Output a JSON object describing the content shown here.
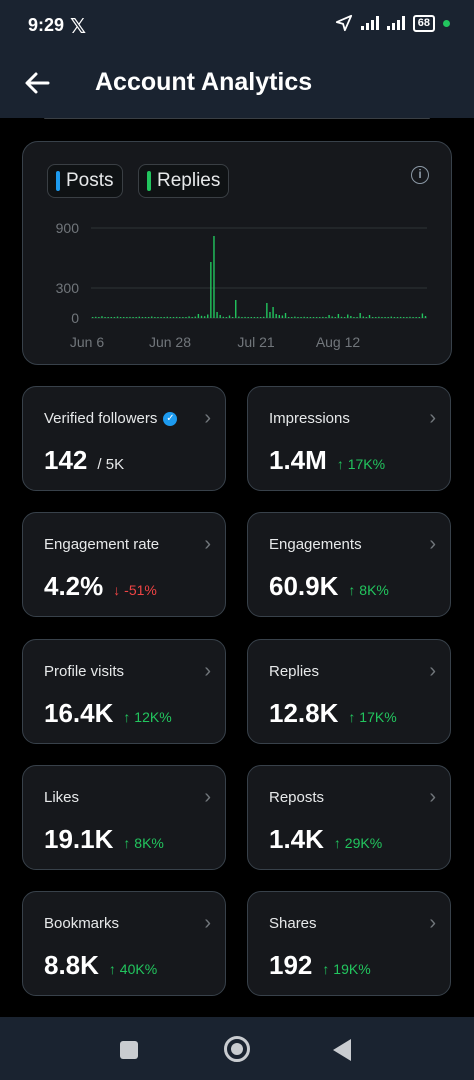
{
  "status": {
    "time": "9:29",
    "x_logo": "𝕏",
    "battery": "68"
  },
  "header": {
    "title": "Account Analytics"
  },
  "chart_data": {
    "type": "bar",
    "legend": [
      {
        "name": "Posts",
        "color": "#1d9bf0"
      },
      {
        "name": "Replies",
        "color": "#22c55e"
      }
    ],
    "yticks": [
      "900",
      "300",
      "0"
    ],
    "ytick_values": [
      900,
      300,
      0
    ],
    "xticks": [
      "Jun 6",
      "Jun 28",
      "Jul 21",
      "Aug 12"
    ],
    "ylim": [
      0,
      900
    ],
    "grid": true,
    "series": [
      {
        "name": "Replies",
        "values": [
          5,
          12,
          3,
          18,
          8,
          4,
          10,
          6,
          14,
          9,
          3,
          7,
          11,
          5,
          8,
          13,
          6,
          4,
          9,
          15,
          7,
          3,
          10,
          6,
          12,
          8,
          5,
          11,
          4,
          9,
          7,
          16,
          10,
          14,
          40,
          22,
          18,
          35,
          560,
          820,
          60,
          30,
          12,
          8,
          25,
          6,
          180,
          14,
          9,
          11,
          7,
          5,
          10,
          8,
          6,
          12,
          150,
          60,
          110,
          40,
          30,
          25,
          50,
          10,
          8,
          14,
          6,
          9,
          12,
          5,
          7,
          10,
          4,
          8,
          11,
          6,
          30,
          15,
          9,
          40,
          12,
          8,
          35,
          20,
          7,
          10,
          50,
          15,
          9,
          30,
          5,
          8,
          12,
          6,
          10,
          7,
          14,
          9,
          5,
          11,
          8,
          6,
          12,
          10,
          7,
          9,
          45,
          20
        ]
      }
    ]
  },
  "cards": [
    {
      "label": "Verified followers",
      "value": "142",
      "sub": "/ 5K",
      "change": "",
      "verified": true
    },
    {
      "label": "Impressions",
      "value": "1.4M",
      "sub": "",
      "change": "↑ 17K%",
      "dir": "up"
    },
    {
      "label": "Engagement rate",
      "value": "4.2%",
      "sub": "",
      "change": "↓ -51%",
      "dir": "down"
    },
    {
      "label": "Engagements",
      "value": "60.9K",
      "sub": "",
      "change": "↑ 8K%",
      "dir": "up"
    },
    {
      "label": "Profile visits",
      "value": "16.4K",
      "sub": "",
      "change": "↑ 12K%",
      "dir": "up"
    },
    {
      "label": "Replies",
      "value": "12.8K",
      "sub": "",
      "change": "↑ 17K%",
      "dir": "up"
    },
    {
      "label": "Likes",
      "value": "19.1K",
      "sub": "",
      "change": "↑ 8K%",
      "dir": "up"
    },
    {
      "label": "Reposts",
      "value": "1.4K",
      "sub": "",
      "change": "↑ 29K%",
      "dir": "up"
    },
    {
      "label": "Bookmarks",
      "value": "8.8K",
      "sub": "",
      "change": "↑ 40K%",
      "dir": "up"
    },
    {
      "label": "Shares",
      "value": "192",
      "sub": "",
      "change": "↑ 19K%",
      "dir": "up"
    }
  ]
}
